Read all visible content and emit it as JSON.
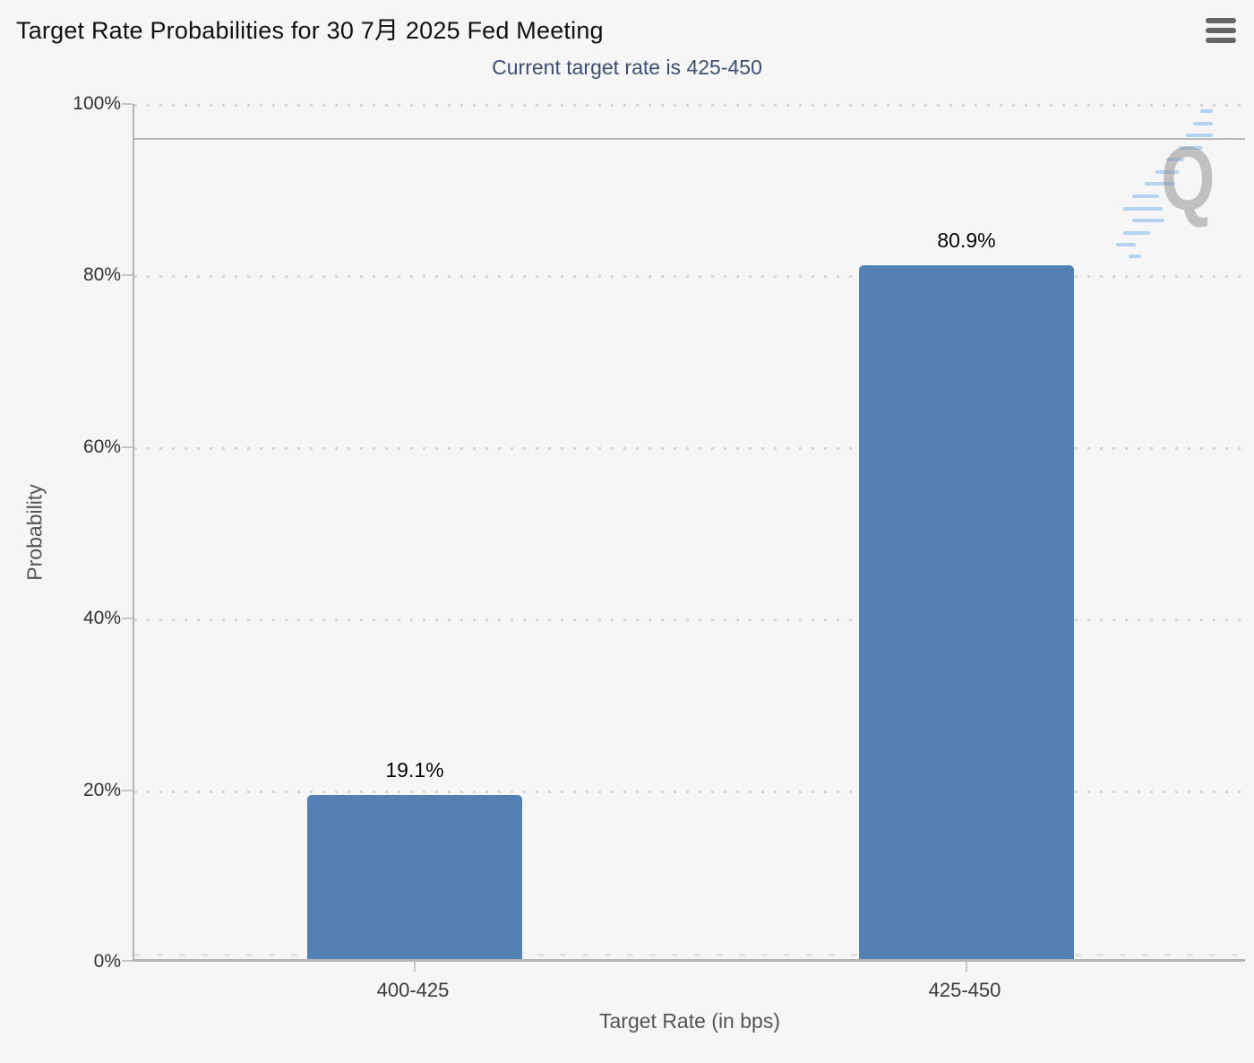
{
  "header": {
    "title": "Target Rate Probabilities for 30 7月 2025 Fed Meeting",
    "menu_icon": "hamburger-icon"
  },
  "chart_data": {
    "type": "bar",
    "title": "Target Rate Probabilities for 30 7月 2025 Fed Meeting",
    "subtitle": "Current target rate is 425-450",
    "categories": [
      "400-425",
      "425-450"
    ],
    "values": [
      19.1,
      80.9
    ],
    "value_labels": [
      "19.1%",
      "80.9%"
    ],
    "xlabel": "Target Rate (in bps)",
    "ylabel": "Probability",
    "ylim": [
      0,
      100
    ],
    "ytick_labels": [
      "100%",
      "80%",
      "60%",
      "40%",
      "20%",
      "0%"
    ],
    "grid": "horizontal-dotted",
    "legend": "none",
    "reference_line_pct": 96,
    "watermark_letter": "Q"
  },
  "colors": {
    "background": "#f6f6f6",
    "bar": "#5380b5",
    "title": "#111111",
    "subtitle": "#3d4f71",
    "axis_line": "#b3b3b3",
    "grid_dot": "#d6d6d6",
    "tick_label": "#333333",
    "axis_title": "#555555",
    "menu_icon": "#666666"
  }
}
